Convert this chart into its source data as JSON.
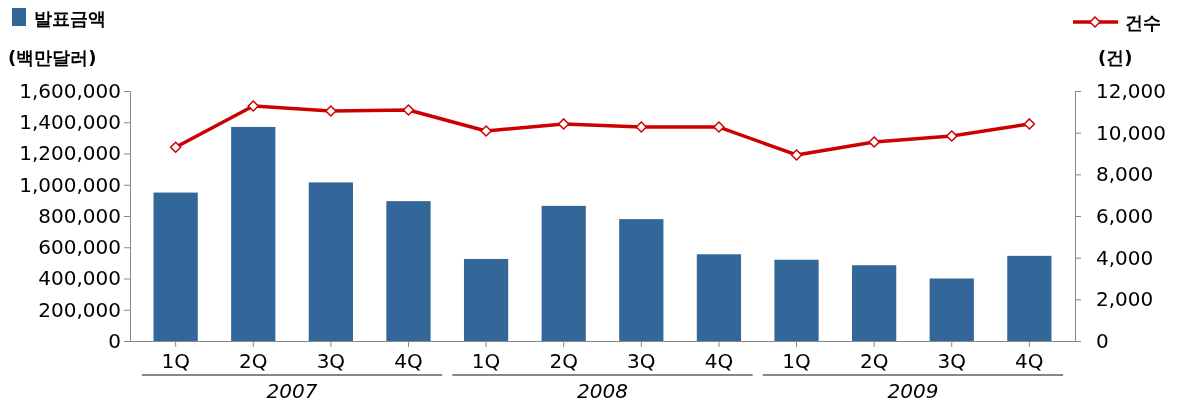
{
  "chart_data": {
    "type": "bar",
    "ylabel": "(백만달러)",
    "y2label": "(건)",
    "categories": [
      "1Q",
      "2Q",
      "3Q",
      "4Q",
      "1Q",
      "2Q",
      "3Q",
      "4Q",
      "1Q",
      "2Q",
      "3Q",
      "4Q"
    ],
    "series": [
      {
        "name": "발표금액",
        "color": "#336699",
        "values": [
          950000,
          1370000,
          1015000,
          895000,
          525000,
          865000,
          780000,
          555000,
          520000,
          485000,
          400000,
          545000
        ]
      },
      {
        "name": "건수",
        "type": "line",
        "axis": "y2",
        "color": "#cc0000",
        "marker": "diamond",
        "values": [
          9300,
          11280,
          11040,
          11090,
          10080,
          10420,
          10270,
          10270,
          8930,
          9550,
          9840,
          10420
        ]
      }
    ],
    "ylim": [
      0,
      1600000
    ],
    "yticks": [
      {
        "value": 0,
        "label": "0"
      },
      {
        "value": 200000,
        "label": "200,000"
      },
      {
        "value": 400000,
        "label": "400,000"
      },
      {
        "value": 600000,
        "label": "600,000"
      },
      {
        "value": 800000,
        "label": "800,000"
      },
      {
        "value": 1000000,
        "label": "1,000,000"
      },
      {
        "value": 1200000,
        "label": "1,200,000"
      },
      {
        "value": 1400000,
        "label": "1,400,000"
      },
      {
        "value": 1600000,
        "label": "1,600,000"
      }
    ],
    "y2lim": [
      0,
      12000
    ],
    "y2ticks": [
      {
        "value": 0,
        "label": "0"
      },
      {
        "value": 2000,
        "label": "2,000"
      },
      {
        "value": 4000,
        "label": "4,000"
      },
      {
        "value": 6000,
        "label": "6,000"
      },
      {
        "value": 8000,
        "label": "8,000"
      },
      {
        "value": 10000,
        "label": "10,000"
      },
      {
        "value": 12000,
        "label": "12,000"
      }
    ],
    "annotations": [
      {
        "text": "2007"
      },
      {
        "text": "2008"
      },
      {
        "text": "2009"
      }
    ],
    "legend": "top",
    "grid": false
  }
}
